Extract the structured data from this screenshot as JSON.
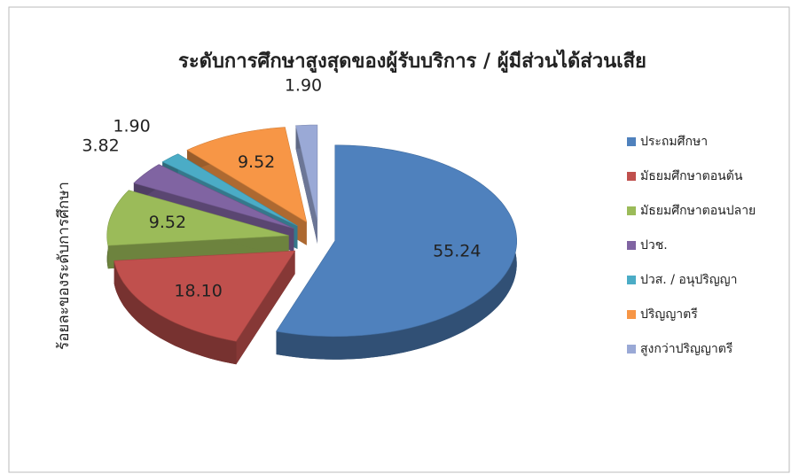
{
  "chart_data": {
    "type": "pie",
    "title": "ระดับการศึกษาสูงสุดของผู้รับบริการ / ผู้มีส่วนได้ส่วนเสีย",
    "y_label": "ร้อยละของระดับการศึกษา",
    "categories": [
      "ประถมศึกษา",
      "มัธยมศึกษาตอนต้น",
      "มัธยมศึกษาตอนปลาย",
      "ปวช.",
      "ปวส. / อนุปริญญา",
      "ปริญญาตรี",
      "สูงกว่าปริญญาตรี"
    ],
    "values": [
      55.24,
      18.1,
      9.52,
      3.82,
      1.9,
      9.52,
      1.9
    ],
    "value_labels": [
      "55.24",
      "18.10",
      "9.52",
      "3.82",
      "1.90",
      "9.52",
      "1.90"
    ],
    "colors": [
      "#4f81bd",
      "#c0504d",
      "#9bbb59",
      "#8064a2",
      "#4bacc6",
      "#f79646",
      "#9aa9d6"
    ],
    "legend": "right"
  }
}
